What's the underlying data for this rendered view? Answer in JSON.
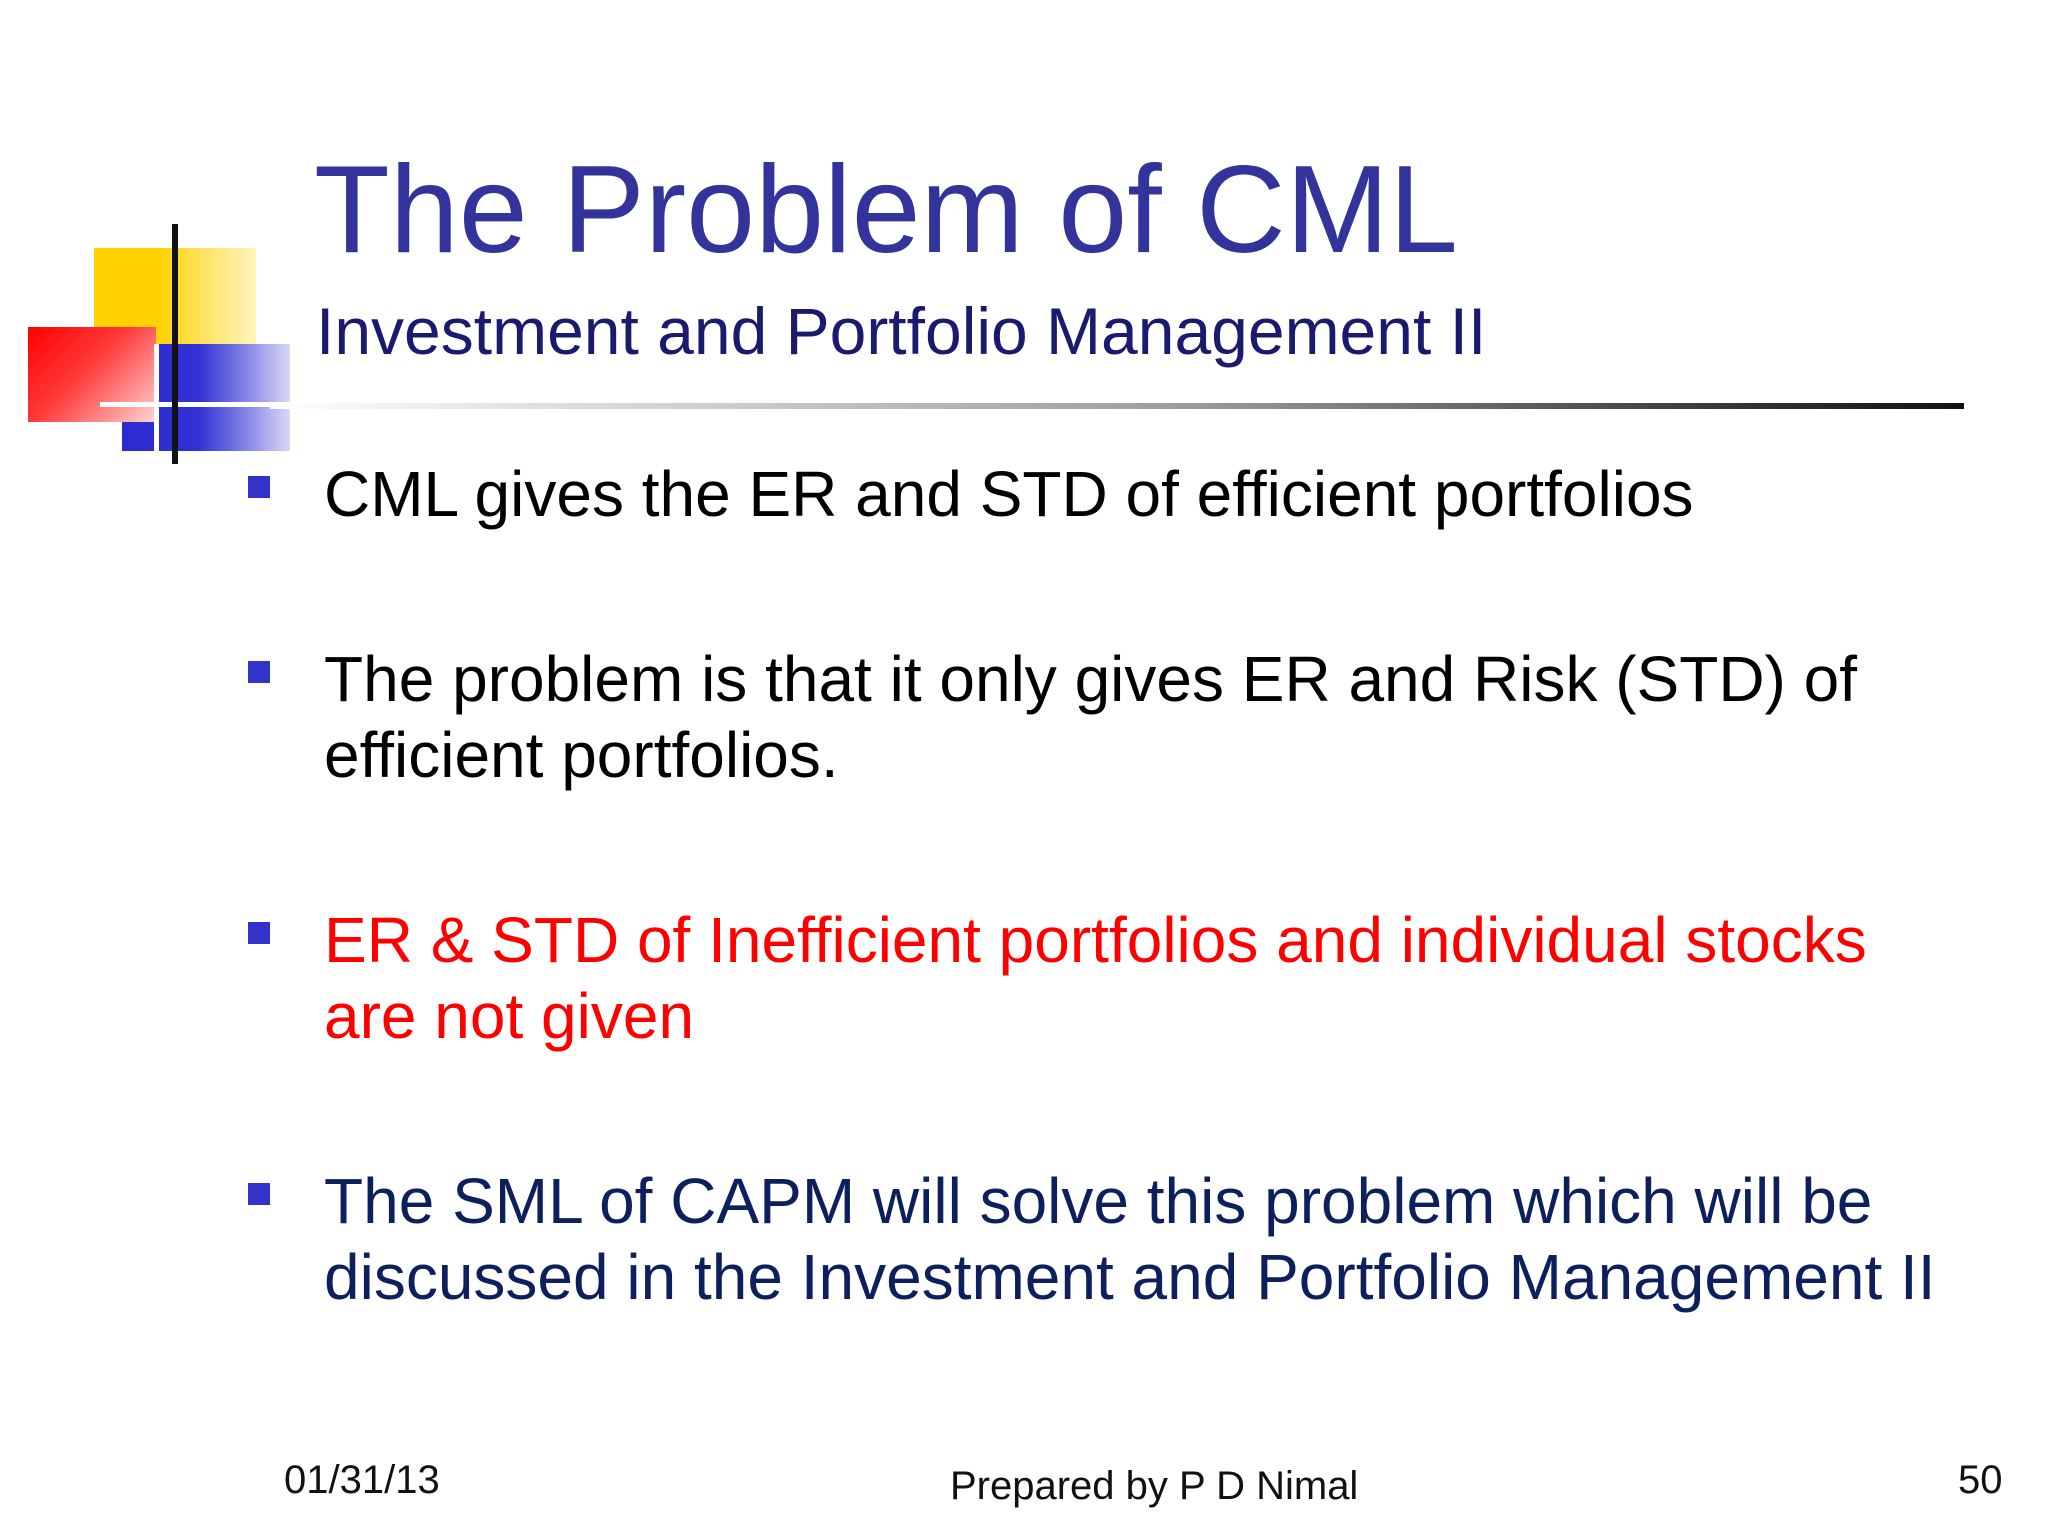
{
  "slide": {
    "title": "The Problem of CML",
    "subtitle": "Investment and Portfolio Management II",
    "bullets": [
      {
        "text": "CML gives the ER and STD of efficient portfolios",
        "color": "#000000"
      },
      {
        "text": "The problem is that it only gives ER and Risk (STD) of efficient portfolios.",
        "color": "#000000"
      },
      {
        "text": "ER & STD of Inefficient portfolios and individual stocks are not given",
        "color": "#ff0000"
      },
      {
        "text": "The SML of CAPM will solve this problem which will be discussed in the Investment and Portfolio Management II",
        "color": "#0d1f5c"
      }
    ],
    "footer": {
      "date": "01/31/13",
      "center": "Prepared by P D Nimal",
      "page_number": "50"
    },
    "colors": {
      "title": "#33339c",
      "bullet_marker": "#3333cc",
      "accent_yellow": "#ffd200",
      "accent_red": "#ff0000",
      "accent_blue": "#2b2bd1"
    }
  }
}
